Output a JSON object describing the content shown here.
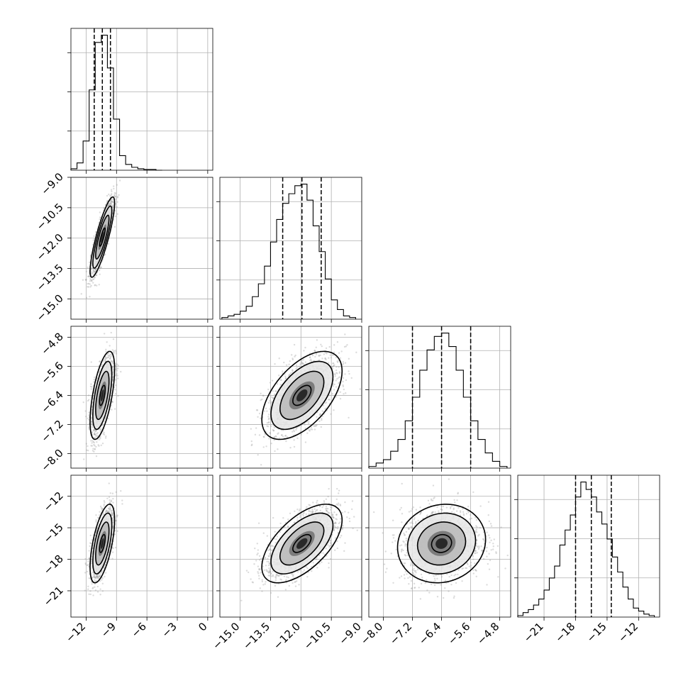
{
  "chart_data": {
    "type": "corner",
    "title": "",
    "grid": true,
    "parameters": [
      {
        "index": 0,
        "range": [
          -13.5,
          0.5
        ],
        "ticks": [
          -12,
          -9,
          -6,
          -3,
          0
        ],
        "tick_labels": [
          "−12",
          "−9",
          "−6",
          "−3",
          "0"
        ],
        "quantiles": [
          -11.2,
          -10.4,
          -9.6
        ],
        "median": -10.4,
        "hist_bin_centers": [
          -13.2,
          -12.6,
          -12.0,
          -11.4,
          -10.8,
          -10.2,
          -9.6,
          -9.0,
          -8.4,
          -7.8,
          -7.2,
          -6.6,
          -6.0,
          -5.4,
          -4.8
        ],
        "hist_counts": [
          2,
          10,
          40,
          110,
          175,
          185,
          140,
          70,
          20,
          8,
          4,
          2,
          1,
          1,
          0
        ]
      },
      {
        "index": 1,
        "range": [
          -16.0,
          -9.0
        ],
        "ticks": [
          -15.0,
          -13.5,
          -12.0,
          -10.5,
          -9.0
        ],
        "tick_labels": [
          "−15.0",
          "−13.5",
          "−12.0",
          "−10.5",
          "−9.0"
        ],
        "quantiles": [
          -12.9,
          -11.95,
          -11.0
        ],
        "median": -11.95,
        "hist_bin_centers": [
          -15.75,
          -15.45,
          -15.15,
          -14.85,
          -14.55,
          -14.25,
          -13.95,
          -13.65,
          -13.35,
          -13.05,
          -12.75,
          -12.45,
          -12.15,
          -11.85,
          -11.55,
          -11.25,
          -10.95,
          -10.65,
          -10.35,
          -10.05,
          -9.75,
          -9.45
        ],
        "hist_counts": [
          1,
          2,
          3,
          5,
          8,
          14,
          22,
          33,
          48,
          62,
          72,
          78,
          83,
          84,
          74,
          58,
          42,
          25,
          12,
          6,
          2,
          1
        ]
      },
      {
        "index": 2,
        "range": [
          -8.4,
          -4.5
        ],
        "ticks": [
          -8.0,
          -7.2,
          -6.4,
          -5.6,
          -4.8
        ],
        "tick_labels": [
          "−8.0",
          "−7.2",
          "−6.4",
          "−5.6",
          "−4.8"
        ],
        "quantiles": [
          -7.2,
          -6.4,
          -5.6
        ],
        "median": -6.4,
        "hist_bin_centers": [
          -8.3,
          -8.1,
          -7.9,
          -7.7,
          -7.5,
          -7.3,
          -7.1,
          -6.9,
          -6.7,
          -6.5,
          -6.3,
          -6.1,
          -5.9,
          -5.7,
          -5.5,
          -5.3,
          -5.1,
          -4.9,
          -4.7
        ],
        "hist_counts": [
          1,
          3,
          5,
          10,
          17,
          28,
          42,
          58,
          70,
          78,
          80,
          72,
          58,
          42,
          28,
          17,
          9,
          4,
          1
        ]
      },
      {
        "index": 3,
        "range": [
          -23.5,
          -10.0
        ],
        "ticks": [
          -21,
          -18,
          -15,
          -12
        ],
        "tick_labels": [
          "−21",
          "−18",
          "−15",
          "−12"
        ],
        "quantiles": [
          -18.0,
          -16.5,
          -14.6
        ],
        "median": -16.5,
        "hist_bin_centers": [
          -23.25,
          -22.75,
          -22.25,
          -21.75,
          -21.25,
          -20.75,
          -20.25,
          -19.75,
          -19.25,
          -18.75,
          -18.25,
          -17.75,
          -17.25,
          -16.75,
          -16.25,
          -15.75,
          -15.25,
          -14.75,
          -14.25,
          -13.75,
          -13.25,
          -12.75,
          -12.25,
          -11.75,
          -11.25,
          -10.75
        ],
        "hist_counts": [
          1,
          3,
          5,
          8,
          12,
          18,
          26,
          34,
          48,
          58,
          68,
          80,
          90,
          85,
          80,
          70,
          62,
          52,
          40,
          30,
          20,
          12,
          6,
          4,
          2,
          1
        ]
      }
    ],
    "correlations": {
      "1-0": 0.85,
      "2-0": 0.6,
      "2-1": 0.55,
      "3-0": 0.6,
      "3-1": 0.6,
      "3-2": 0.1
    },
    "std_devs": [
      0.55,
      0.9,
      0.55,
      1.7
    ]
  }
}
